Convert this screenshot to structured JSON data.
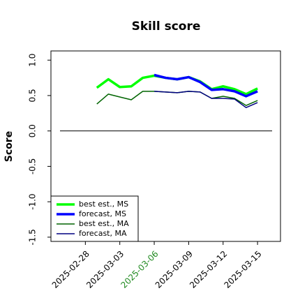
{
  "chart_data": {
    "type": "line",
    "title": "Skill score",
    "y_label": "Score",
    "x": [
      "2025-03-01",
      "2025-03-02",
      "2025-03-03",
      "2025-03-04",
      "2025-03-05",
      "2025-03-06",
      "2025-03-07",
      "2025-03-08",
      "2025-03-09",
      "2025-03-10",
      "2025-03-11",
      "2025-03-12",
      "2025-03-13",
      "2025-03-14",
      "2025-03-15"
    ],
    "series": [
      {
        "name": "best est., MS",
        "color": "#00ff00",
        "width": 3.5,
        "values": [
          0.61,
          0.73,
          0.62,
          0.63,
          0.75,
          0.78,
          0.75,
          0.73,
          0.76,
          0.7,
          0.59,
          0.63,
          0.59,
          0.52,
          0.6
        ]
      },
      {
        "name": "forecast, MS",
        "color": "#0000ff",
        "width": 3.5,
        "values": [
          null,
          null,
          null,
          null,
          null,
          0.79,
          0.75,
          0.73,
          0.76,
          0.69,
          0.58,
          0.59,
          0.56,
          0.49,
          0.56
        ]
      },
      {
        "name": "best est., MA",
        "color": "#006400",
        "width": 1.5,
        "values": [
          0.38,
          0.52,
          0.48,
          0.44,
          0.56,
          0.56,
          0.55,
          0.54,
          0.56,
          0.55,
          0.46,
          0.49,
          0.46,
          0.36,
          0.43
        ]
      },
      {
        "name": "forecast, MA",
        "color": "#000080",
        "width": 1.5,
        "values": [
          null,
          null,
          null,
          null,
          null,
          0.56,
          0.55,
          0.54,
          0.56,
          0.55,
          0.46,
          0.46,
          0.45,
          0.33,
          0.4
        ]
      }
    ],
    "hline": 0,
    "xlim": [
      "2025-02-25",
      "2025-03-17"
    ],
    "xticks": [
      "2025-02-28",
      "2025-03-03",
      "2025-03-06",
      "2025-03-09",
      "2025-03-12",
      "2025-03-15"
    ],
    "xtick_highlight": {
      "index": 2,
      "color": "#228b22"
    },
    "ylim": [
      -1.56,
      1.13
    ],
    "yticks": [
      {
        "value": -1.5,
        "label": "-1.5"
      },
      {
        "value": -1,
        "label": "-1.0"
      },
      {
        "value": -0.5,
        "label": "-0.5"
      },
      {
        "value": 0,
        "label": "0.0"
      },
      0.5,
      {
        "value": 1,
        "label": "1.0"
      }
    ],
    "legend": "lower left",
    "grid": false
  }
}
